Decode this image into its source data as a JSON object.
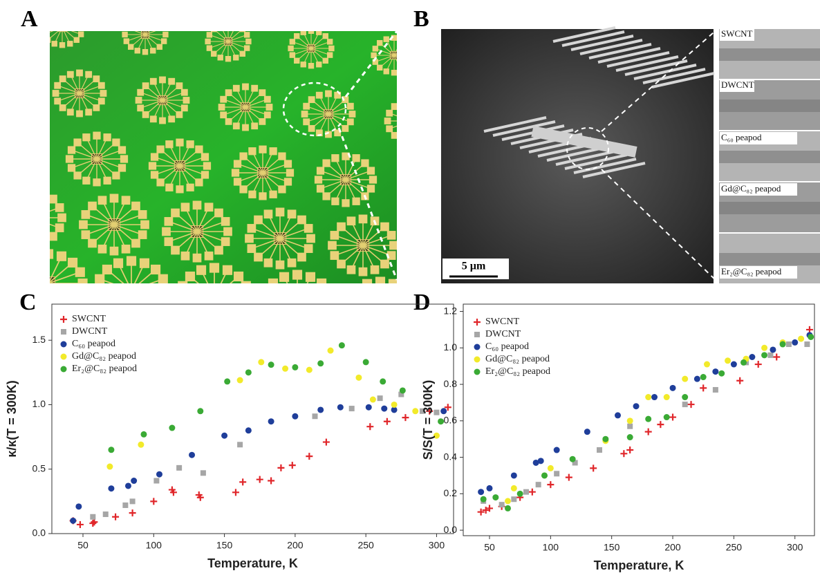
{
  "panel_labels": [
    "A",
    "B",
    "C",
    "D"
  ],
  "panel_b": {
    "image_labels": [
      "SWCNT",
      "DWCNT",
      "C₆₀ peapod",
      "Gd@C₈₂ peapod",
      "Er₂@C₈₂ peapod"
    ],
    "scale_bar": "5 µm"
  },
  "chart_data": [
    {
      "type": "scatter",
      "xlabel": "Temperature, K",
      "ylabel": "κ/κ(T = 300K)",
      "legend": "upper left",
      "xlim": [
        28,
        312
      ],
      "ylim": [
        0,
        1.78
      ],
      "xticks": [
        50,
        100,
        150,
        200,
        250,
        300
      ],
      "yticks": [
        {
          "value": 0,
          "label": "0.0"
        },
        0.5,
        {
          "value": 1,
          "label": "1.0"
        },
        1.5
      ],
      "series": [
        {
          "name": "SWCNT",
          "color": "#e0262a",
          "marker": "plus",
          "x": [
            43,
            48,
            57,
            58,
            73,
            85,
            100,
            113,
            114,
            132,
            133,
            158,
            163,
            175,
            183,
            190,
            198,
            210,
            222,
            253,
            265,
            278,
            295,
            308
          ],
          "values": [
            0.1,
            0.07,
            0.08,
            0.09,
            0.13,
            0.16,
            0.25,
            0.34,
            0.32,
            0.3,
            0.28,
            0.32,
            0.4,
            0.42,
            0.41,
            0.51,
            0.53,
            0.6,
            0.71,
            0.83,
            0.87,
            0.9,
            0.95,
            0.98
          ]
        },
        {
          "name": "DWCNT",
          "color": "#a6a6a6",
          "marker": "square",
          "x": [
            57,
            66,
            80,
            85,
            102,
            118,
            135,
            161,
            214,
            240,
            260,
            275,
            290,
            300
          ],
          "values": [
            0.13,
            0.15,
            0.22,
            0.25,
            0.41,
            0.51,
            0.47,
            0.69,
            0.91,
            0.97,
            1.05,
            1.08,
            0.95,
            0.94
          ]
        },
        {
          "name": "C₆₀ peapod",
          "color": "#1f3e9a",
          "marker": "circle",
          "x": [
            43,
            47,
            70,
            82,
            86,
            104,
            127,
            150,
            167,
            183,
            200,
            218,
            232,
            252,
            263,
            270,
            305
          ],
          "values": [
            0.1,
            0.21,
            0.35,
            0.37,
            0.41,
            0.46,
            0.61,
            0.76,
            0.8,
            0.87,
            0.91,
            0.96,
            0.98,
            0.98,
            0.97,
            0.96,
            0.95
          ]
        },
        {
          "name": "Gd@C₈₂ peapod",
          "color": "#f2ea2a",
          "marker": "circle",
          "x": [
            69,
            91,
            161,
            176,
            193,
            210,
            225,
            245,
            255,
            270,
            285,
            300
          ],
          "values": [
            0.52,
            0.69,
            1.19,
            1.33,
            1.28,
            1.27,
            1.42,
            1.21,
            1.04,
            1.0,
            0.95,
            0.76
          ]
        },
        {
          "name": "Er₂@C₈₂ peapod",
          "color": "#3aaa35",
          "marker": "circle",
          "x": [
            70,
            93,
            113,
            133,
            152,
            167,
            183,
            200,
            218,
            233,
            250,
            262,
            276,
            303
          ],
          "values": [
            0.65,
            0.77,
            0.82,
            0.95,
            1.18,
            1.25,
            1.31,
            1.29,
            1.32,
            1.46,
            1.33,
            1.18,
            1.11,
            0.87
          ]
        }
      ]
    },
    {
      "type": "scatter",
      "xlabel": "Temperature, K",
      "ylabel": "S/S(T = 300K)",
      "legend": "upper left",
      "xlim": [
        28.5,
        316
      ],
      "ylim": [
        -0.03,
        1.24
      ],
      "xticks": [
        50,
        100,
        150,
        200,
        250,
        300
      ],
      "yticks": [
        {
          "value": 0,
          "label": "0.0"
        },
        0.2,
        0.4,
        0.6,
        0.8,
        {
          "value": 1,
          "label": "1.0"
        },
        1.2
      ],
      "series": [
        {
          "name": "SWCNT",
          "color": "#e0262a",
          "marker": "plus",
          "x": [
            43,
            47,
            50,
            60,
            75,
            85,
            100,
            115,
            135,
            160,
            165,
            180,
            190,
            200,
            215,
            225,
            255,
            270,
            285,
            312
          ],
          "values": [
            0.1,
            0.11,
            0.12,
            0.13,
            0.18,
            0.21,
            0.25,
            0.29,
            0.34,
            0.42,
            0.44,
            0.54,
            0.58,
            0.62,
            0.69,
            0.78,
            0.82,
            0.91,
            0.95,
            1.1
          ]
        },
        {
          "name": "DWCNT",
          "color": "#a6a6a6",
          "marker": "square",
          "x": [
            45,
            60,
            70,
            80,
            90,
            105,
            120,
            140,
            165,
            210,
            235,
            260,
            280,
            295,
            310
          ],
          "values": [
            0.16,
            0.14,
            0.17,
            0.21,
            0.25,
            0.31,
            0.37,
            0.44,
            0.57,
            0.69,
            0.77,
            0.92,
            0.96,
            1.02,
            1.02
          ]
        },
        {
          "name": "C₆₀ peapod",
          "color": "#1f3e9a",
          "marker": "circle",
          "x": [
            43,
            50,
            70,
            88,
            92,
            105,
            130,
            155,
            170,
            185,
            200,
            220,
            235,
            250,
            265,
            282,
            300,
            312
          ],
          "values": [
            0.21,
            0.23,
            0.3,
            0.37,
            0.38,
            0.44,
            0.54,
            0.63,
            0.68,
            0.73,
            0.78,
            0.83,
            0.87,
            0.91,
            0.95,
            0.99,
            1.03,
            1.07
          ]
        },
        {
          "name": "Gd@C₈₂ peapod",
          "color": "#f2ea2a",
          "marker": "circle",
          "x": [
            65,
            70,
            95,
            100,
            145,
            165,
            180,
            195,
            210,
            228,
            245,
            260,
            275,
            290,
            305
          ],
          "values": [
            0.16,
            0.23,
            0.3,
            0.34,
            0.49,
            0.6,
            0.73,
            0.73,
            0.83,
            0.91,
            0.93,
            0.94,
            1.0,
            1.03,
            1.05
          ]
        },
        {
          "name": "Er₂@C₈₂ peapod",
          "color": "#3aaa35",
          "marker": "circle",
          "x": [
            45,
            55,
            65,
            75,
            95,
            118,
            145,
            165,
            180,
            195,
            210,
            225,
            240,
            258,
            275,
            290,
            313
          ],
          "values": [
            0.17,
            0.18,
            0.12,
            0.2,
            0.3,
            0.39,
            0.5,
            0.51,
            0.61,
            0.62,
            0.73,
            0.84,
            0.86,
            0.92,
            0.96,
            1.02,
            1.06
          ]
        }
      ]
    }
  ]
}
